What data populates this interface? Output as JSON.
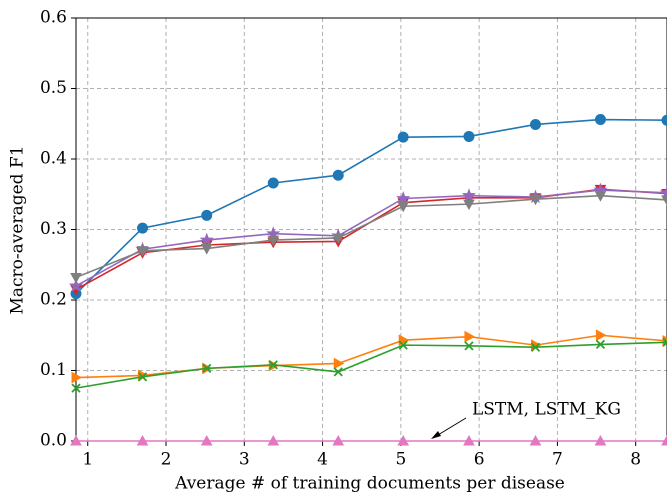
{
  "chart_data": {
    "type": "line",
    "xlabel": "Average # of training documents per disease",
    "ylabel": "Macro-averaged F1",
    "annotation": "LSTM, LSTM_KG",
    "x": [
      0.85,
      1.7,
      2.52,
      3.37,
      4.2,
      5.03,
      5.87,
      6.72,
      7.55,
      8.4
    ],
    "series": [
      {
        "color": "#1f77b4",
        "marker": "circle",
        "values": [
          0.209,
          0.302,
          0.32,
          0.366,
          0.377,
          0.431,
          0.432,
          0.449,
          0.456,
          0.455
        ]
      },
      {
        "color": "#d62728",
        "marker": "triangle-down",
        "values": [
          0.215,
          0.267,
          0.278,
          0.282,
          0.283,
          0.338,
          0.345,
          0.345,
          0.357,
          0.351
        ]
      },
      {
        "color": "#9467bd",
        "marker": "star",
        "values": [
          0.22,
          0.272,
          0.285,
          0.294,
          0.291,
          0.344,
          0.348,
          0.346,
          0.356,
          0.352
        ]
      },
      {
        "color": "#7f7f7f",
        "marker": "triangle-down",
        "values": [
          0.232,
          0.27,
          0.273,
          0.285,
          0.288,
          0.333,
          0.336,
          0.343,
          0.348,
          0.342
        ]
      },
      {
        "color": "#ff7f0e",
        "marker": "triangle-right",
        "values": [
          0.09,
          0.093,
          0.103,
          0.107,
          0.11,
          0.143,
          0.148,
          0.136,
          0.15,
          0.142
        ]
      },
      {
        "color": "#2ca02c",
        "marker": "x",
        "values": [
          0.075,
          0.091,
          0.103,
          0.108,
          0.098,
          0.136,
          0.135,
          0.133,
          0.137,
          0.14
        ]
      },
      {
        "color": "#e377c2",
        "marker": "triangle-up",
        "values": [
          0,
          0,
          0,
          0,
          0,
          0,
          0,
          0,
          0,
          0
        ]
      }
    ],
    "xlim": [
      0.85,
      8.4
    ],
    "xticks": [
      1,
      2,
      3,
      4,
      5,
      6,
      7,
      8
    ],
    "ylim": [
      0,
      0.6
    ],
    "yticks": [
      {
        "value": 0,
        "label": "0.0"
      },
      0.1,
      0.2,
      0.3,
      0.4,
      0.5,
      0.6
    ],
    "grid": true
  }
}
